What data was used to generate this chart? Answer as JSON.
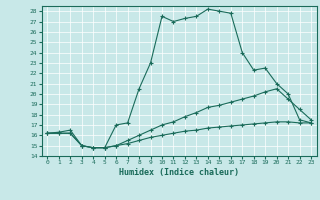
{
  "title": "",
  "xlabel": "Humidex (Indice chaleur)",
  "bg_color": "#c8e8e8",
  "line_color": "#1a6b5a",
  "ylim": [
    14,
    28.5
  ],
  "xlim": [
    -0.5,
    23.5
  ],
  "yticks": [
    14,
    15,
    16,
    17,
    18,
    19,
    20,
    21,
    22,
    23,
    24,
    25,
    26,
    27,
    28
  ],
  "xticks": [
    0,
    1,
    2,
    3,
    4,
    5,
    6,
    7,
    8,
    9,
    10,
    11,
    12,
    13,
    14,
    15,
    16,
    17,
    18,
    19,
    20,
    21,
    22,
    23
  ],
  "line1_x": [
    0,
    1,
    2,
    3,
    4,
    5,
    6,
    7,
    8,
    9,
    10,
    11,
    12,
    13,
    14,
    15,
    16,
    17,
    18,
    19,
    20,
    21,
    22,
    23
  ],
  "line1_y": [
    16.2,
    16.3,
    16.5,
    15.0,
    14.8,
    14.8,
    17.0,
    17.2,
    20.5,
    23.0,
    27.5,
    27.0,
    27.3,
    27.5,
    28.2,
    28.0,
    27.8,
    24.0,
    22.3,
    22.5,
    21.0,
    20.0,
    17.5,
    17.2
  ],
  "line2_x": [
    0,
    1,
    2,
    3,
    4,
    5,
    6,
    7,
    8,
    9,
    10,
    11,
    12,
    13,
    14,
    15,
    16,
    17,
    18,
    19,
    20,
    21,
    22,
    23
  ],
  "line2_y": [
    16.2,
    16.2,
    16.2,
    15.0,
    14.8,
    14.8,
    15.0,
    15.5,
    16.0,
    16.5,
    17.0,
    17.3,
    17.8,
    18.2,
    18.7,
    18.9,
    19.2,
    19.5,
    19.8,
    20.2,
    20.5,
    19.5,
    18.5,
    17.5
  ],
  "line3_x": [
    0,
    1,
    2,
    3,
    4,
    5,
    6,
    7,
    8,
    9,
    10,
    11,
    12,
    13,
    14,
    15,
    16,
    17,
    18,
    19,
    20,
    21,
    22,
    23
  ],
  "line3_y": [
    16.2,
    16.2,
    16.2,
    15.0,
    14.8,
    14.8,
    15.0,
    15.2,
    15.5,
    15.8,
    16.0,
    16.2,
    16.4,
    16.5,
    16.7,
    16.8,
    16.9,
    17.0,
    17.1,
    17.2,
    17.3,
    17.3,
    17.2,
    17.2
  ]
}
